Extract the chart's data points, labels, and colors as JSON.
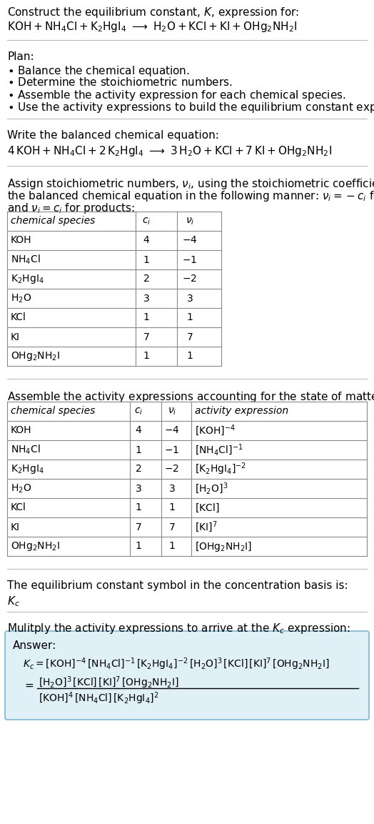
{
  "bg_color": "#ffffff",
  "text_color": "#000000",
  "answer_box_color": "#dff0f7",
  "answer_box_border": "#7ab8d4",
  "separator_color": "#bbbbbb",
  "font_size": 11.0,
  "small_font": 10.0,
  "title_line1": "Construct the equilibrium constant, $K$, expression for:",
  "species_labels1": [
    "KOH",
    "$\\mathrm{NH_4Cl}$",
    "$\\mathrm{K_2HgI_4}$",
    "$\\mathrm{H_2O}$",
    "KCl",
    "KI",
    "$\\mathrm{OHg_2NH_2I}$"
  ],
  "ci_vals": [
    "4",
    "1",
    "2",
    "3",
    "1",
    "7",
    "1"
  ],
  "ni_vals_neg": [
    "$-4$",
    "$-1$",
    "$-2$",
    "3",
    "1",
    "7",
    "1"
  ],
  "act_exprs": [
    "$[\\mathrm{KOH}]^{-4}$",
    "$[\\mathrm{NH_4Cl}]^{-1}$",
    "$[\\mathrm{K_2HgI_4}]^{-2}$",
    "$[\\mathrm{H_2O}]^3$",
    "$[\\mathrm{KCl}]$",
    "$[\\mathrm{KI}]^7$",
    "$[\\mathrm{OHg_2NH_2I}]$"
  ]
}
